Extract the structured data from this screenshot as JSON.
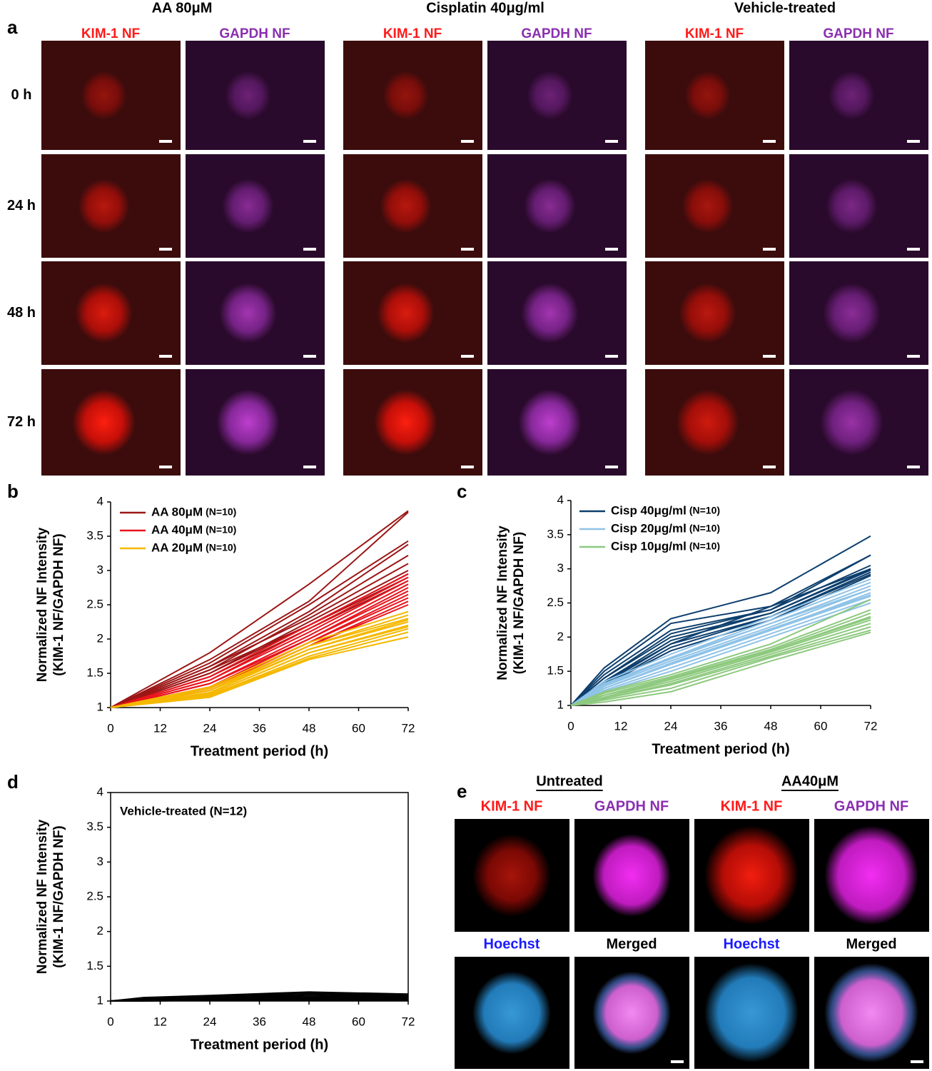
{
  "panel_labels": [
    "a",
    "b",
    "c",
    "d",
    "e"
  ],
  "panel_a": {
    "groups": [
      "AA 80μM",
      "Cisplatin 40μg/ml",
      "Vehicle-treated"
    ],
    "channels": [
      "KIM-1 NF",
      "GAPDH NF"
    ],
    "rows": [
      "0 h",
      "24 h",
      "48 h",
      "72 h"
    ]
  },
  "panel_e": {
    "groups": [
      "Untreated",
      "AA40μM"
    ],
    "channels": [
      "KIM-1 NF",
      "GAPDH NF",
      "Hoechst",
      "Merged"
    ]
  },
  "chart_data": [
    {
      "type": "line",
      "x_label": "Treatment period (h)",
      "y_label": [
        "Normalized NF Intensity",
        "(KIM-1 NF/GAPDH NF)"
      ],
      "x": [
        0,
        24,
        48,
        72
      ],
      "xlim": [
        0,
        72
      ],
      "xticks": [
        0,
        12,
        24,
        36,
        48,
        60,
        72
      ],
      "ylim": [
        1,
        4
      ],
      "yticks": [
        1,
        1.5,
        2,
        2.5,
        3,
        3.5,
        4
      ],
      "series": [
        {
          "name": "AA 80μM",
          "n_label": "(N=10)",
          "color": "#9c1616",
          "values": [
            [
              1,
              1.8,
              2.8,
              3.87
            ],
            [
              1,
              1.7,
              2.55,
              3.85
            ],
            [
              1,
              1.65,
              2.5,
              3.43
            ],
            [
              1,
              1.6,
              2.4,
              3.38
            ],
            [
              1,
              1.55,
              2.35,
              3.22
            ],
            [
              1,
              1.6,
              2.3,
              3.1
            ],
            [
              1,
              1.5,
              2.25,
              3.0
            ],
            [
              1,
              1.55,
              2.2,
              2.95
            ],
            [
              1,
              1.5,
              2.2,
              2.9
            ],
            [
              1,
              1.45,
              2.15,
              2.85
            ]
          ]
        },
        {
          "name": "AA 40μM",
          "n_label": "(N=10)",
          "color": "#e8141c",
          "values": [
            [
              1,
              1.45,
              2.2,
              2.95
            ],
            [
              1,
              1.4,
              2.15,
              2.9
            ],
            [
              1,
              1.4,
              2.1,
              2.85
            ],
            [
              1,
              1.35,
              2.05,
              2.8
            ],
            [
              1,
              1.35,
              2.0,
              2.75
            ],
            [
              1,
              1.3,
              2.0,
              2.7
            ],
            [
              1,
              1.3,
              1.95,
              2.65
            ],
            [
              1,
              1.28,
              1.95,
              2.6
            ],
            [
              1,
              1.25,
              1.9,
              2.55
            ],
            [
              1,
              1.25,
              1.9,
              2.5
            ]
          ]
        },
        {
          "name": "AA 20μM",
          "n_label": "(N=10)",
          "color": "#f5b800",
          "values": [
            [
              1,
              1.3,
              1.95,
              2.4
            ],
            [
              1,
              1.28,
              1.9,
              2.35
            ],
            [
              1,
              1.25,
              1.9,
              2.3
            ],
            [
              1,
              1.25,
              1.85,
              2.28
            ],
            [
              1,
              1.22,
              1.85,
              2.25
            ],
            [
              1,
              1.2,
              1.8,
              2.2
            ],
            [
              1,
              1.2,
              1.8,
              2.18
            ],
            [
              1,
              1.18,
              1.75,
              2.15
            ],
            [
              1,
              1.17,
              1.72,
              2.1
            ],
            [
              1,
              1.15,
              1.7,
              2.03
            ]
          ]
        }
      ]
    },
    {
      "type": "line",
      "x_label": "Treatment period (h)",
      "y_label": [
        "Normalized NF Intensity",
        "(KIM-1 NF/GAPDH NF)"
      ],
      "x": [
        0,
        8,
        24,
        48,
        72
      ],
      "xlim": [
        0,
        72
      ],
      "xticks": [
        0,
        12,
        24,
        36,
        48,
        60,
        72
      ],
      "ylim": [
        1,
        4
      ],
      "yticks": [
        1,
        1.5,
        2,
        2.5,
        3,
        3.5,
        4
      ],
      "series": [
        {
          "name": "Cisp 40μg/ml",
          "n_label": "(N=10)",
          "color": "#0d3f6e",
          "values": [
            [
              1,
              1.55,
              2.27,
              2.65,
              3.48
            ],
            [
              1,
              1.5,
              2.2,
              2.45,
              3.2
            ],
            [
              1,
              1.45,
              2.1,
              2.4,
              3.2
            ],
            [
              1,
              1.4,
              2.05,
              2.4,
              3.05
            ],
            [
              1,
              1.4,
              2.0,
              2.35,
              3.0
            ],
            [
              1,
              1.35,
              1.95,
              2.35,
              2.98
            ],
            [
              1,
              1.35,
              1.9,
              2.3,
              2.95
            ],
            [
              1,
              1.3,
              1.85,
              2.3,
              2.92
            ],
            [
              1,
              1.3,
              1.8,
              2.25,
              2.9
            ],
            [
              1,
              1.32,
              1.9,
              2.45,
              3.0
            ]
          ]
        },
        {
          "name": "Cisp 20μg/ml",
          "n_label": "(N=10)",
          "color": "#8fc3e8",
          "values": [
            [
              1,
              1.35,
              1.75,
              2.3,
              2.85
            ],
            [
              1,
              1.32,
              1.7,
              2.25,
              2.8
            ],
            [
              1,
              1.3,
              1.68,
              2.2,
              2.75
            ],
            [
              1,
              1.28,
              1.65,
              2.15,
              2.7
            ],
            [
              1,
              1.25,
              1.6,
              2.1,
              2.65
            ],
            [
              1,
              1.25,
              1.6,
              2.1,
              2.6
            ],
            [
              1,
              1.22,
              1.55,
              2.05,
              2.55
            ],
            [
              1,
              1.2,
              1.5,
              2.0,
              2.5
            ],
            [
              1,
              1.28,
              1.7,
              2.2,
              2.7
            ],
            [
              1,
              1.25,
              1.62,
              2.12,
              2.62
            ]
          ]
        },
        {
          "name": "Cisp 10μg/ml",
          "n_label": "(N=10)",
          "color": "#8dc97e",
          "values": [
            [
              1,
              1.2,
              1.45,
              1.9,
              2.55
            ],
            [
              1,
              1.18,
              1.42,
              1.85,
              2.4
            ],
            [
              1,
              1.15,
              1.4,
              1.82,
              2.35
            ],
            [
              1,
              1.15,
              1.38,
              1.8,
              2.3
            ],
            [
              1,
              1.12,
              1.35,
              1.78,
              2.25
            ],
            [
              1,
              1.1,
              1.32,
              1.75,
              2.2
            ],
            [
              1,
              1.1,
              1.3,
              1.72,
              2.15
            ],
            [
              1,
              1.08,
              1.25,
              1.7,
              2.1
            ],
            [
              1,
              1.05,
              1.2,
              1.65,
              2.07
            ],
            [
              1,
              1.12,
              1.38,
              1.8,
              2.28
            ]
          ]
        }
      ]
    },
    {
      "type": "line",
      "x_label": "Treatment period (h)",
      "y_label": [
        "Normalized NF Intensity",
        "(KIM-1 NF/GAPDH NF)"
      ],
      "annotation": "Vehicle-treated (N=12)",
      "frame": true,
      "x": [
        0,
        8,
        24,
        48,
        72
      ],
      "xlim": [
        0,
        72
      ],
      "xticks": [
        0,
        12,
        24,
        36,
        48,
        60,
        72
      ],
      "ylim": [
        1,
        4
      ],
      "yticks": [
        1,
        1.5,
        2,
        2.5,
        3,
        3.5,
        4
      ],
      "series": [
        {
          "color": "#000000",
          "values": [
            [
              1,
              1.05,
              1.08,
              1.13,
              1.1
            ],
            [
              1,
              1.04,
              1.07,
              1.12,
              1.08
            ],
            [
              1,
              1.04,
              1.06,
              1.1,
              1.07
            ],
            [
              1,
              1.03,
              1.05,
              1.08,
              1.06
            ],
            [
              1,
              1.03,
              1.05,
              1.06,
              1.05
            ],
            [
              1,
              1.02,
              1.04,
              1.05,
              1.05
            ],
            [
              1,
              1.02,
              1.03,
              1.04,
              1.04
            ],
            [
              1,
              1.02,
              1.03,
              1.03,
              1.03
            ],
            [
              1,
              1.01,
              1.02,
              1.03,
              1.03
            ],
            [
              1,
              1.01,
              1.02,
              1.02,
              1.02
            ],
            [
              1,
              1.01,
              1.01,
              1.02,
              1.02
            ],
            [
              1,
              1.0,
              1.01,
              1.01,
              1.01
            ]
          ]
        }
      ]
    }
  ]
}
